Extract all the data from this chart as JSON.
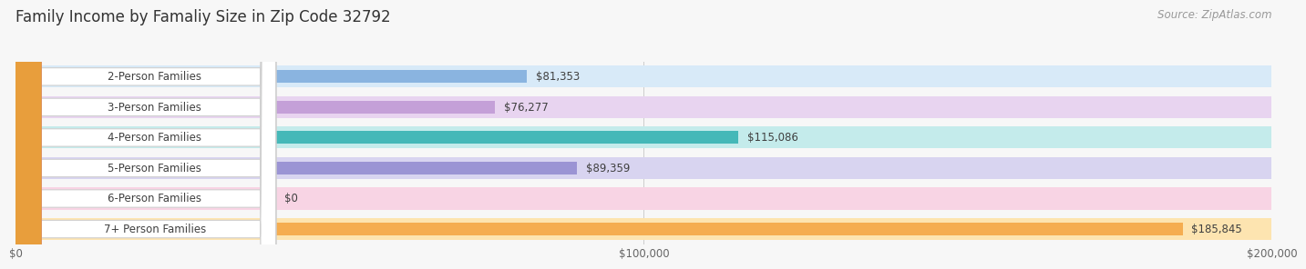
{
  "title": "Family Income by Famaliy Size in Zip Code 32792",
  "source": "Source: ZipAtlas.com",
  "categories": [
    "2-Person Families",
    "3-Person Families",
    "4-Person Families",
    "5-Person Families",
    "6-Person Families",
    "7+ Person Families"
  ],
  "values": [
    81353,
    76277,
    115086,
    89359,
    0,
    185845
  ],
  "bar_colors": [
    "#8ab4e0",
    "#c4a0d8",
    "#45b8b8",
    "#9b94d4",
    "#f298b8",
    "#f5ad50"
  ],
  "bar_bg_colors": [
    "#d8eaf8",
    "#e8d4f0",
    "#c4ebeb",
    "#d8d4f0",
    "#f8d4e4",
    "#fde4b0"
  ],
  "dot_colors": [
    "#7aaad4",
    "#b890cc",
    "#38aaa8",
    "#8880c4",
    "#e880a8",
    "#e89e3c"
  ],
  "xlim": [
    0,
    200000
  ],
  "xticks": [
    0,
    100000,
    200000
  ],
  "xtick_labels": [
    "$0",
    "$100,000",
    "$200,000"
  ],
  "background_color": "#f7f7f7",
  "title_fontsize": 12,
  "label_fontsize": 8.5,
  "value_fontsize": 8.5,
  "source_fontsize": 8.5
}
